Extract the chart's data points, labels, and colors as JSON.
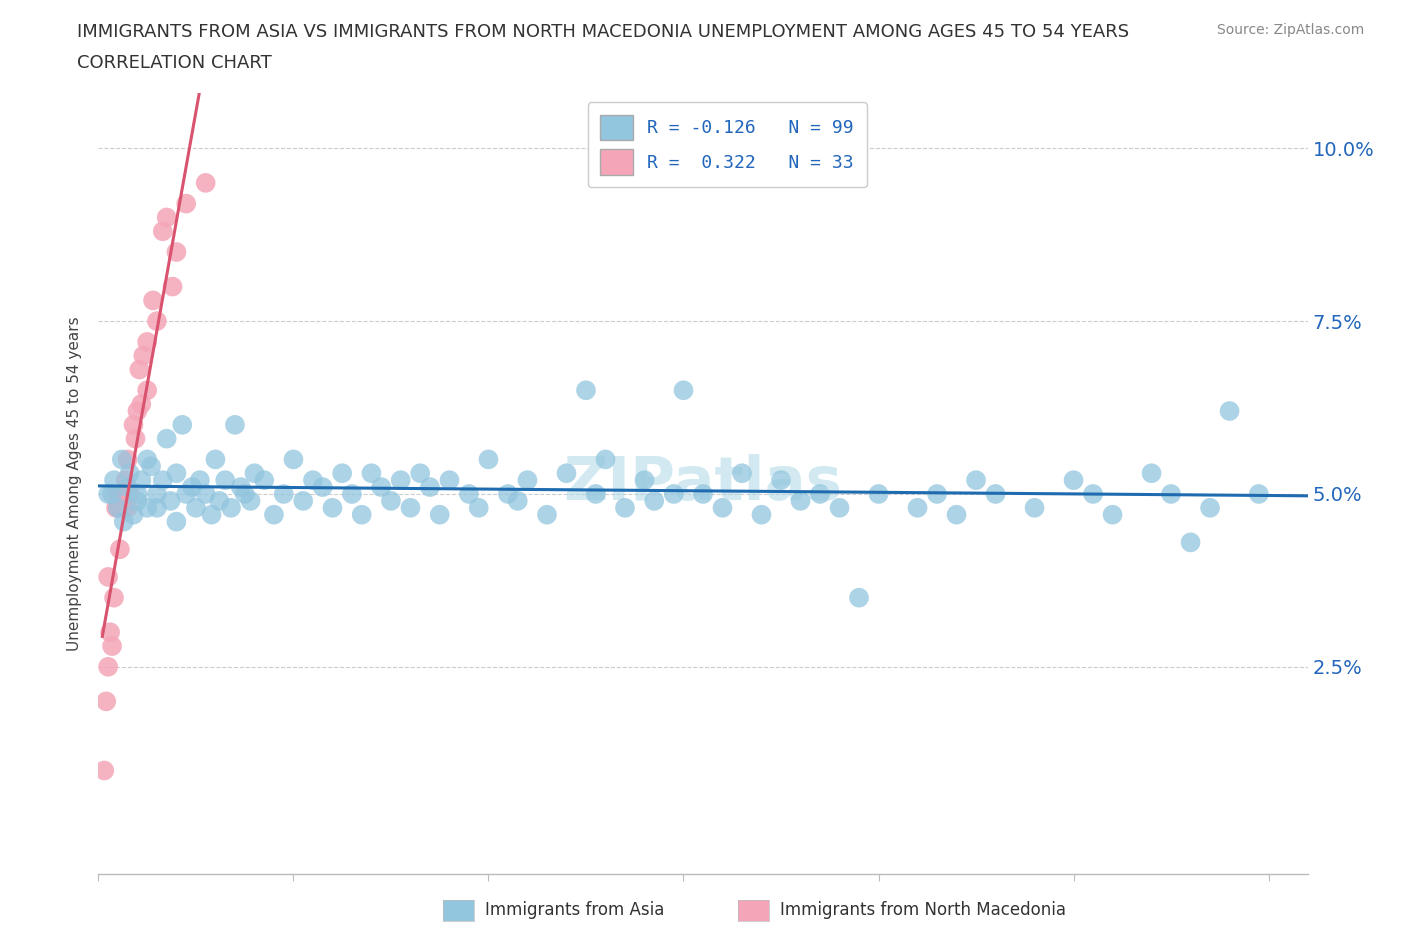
{
  "title_line1": "IMMIGRANTS FROM ASIA VS IMMIGRANTS FROM NORTH MACEDONIA UNEMPLOYMENT AMONG AGES 45 TO 54 YEARS",
  "title_line2": "CORRELATION CHART",
  "source": "Source: ZipAtlas.com",
  "ylabel": "Unemployment Among Ages 45 to 54 years",
  "ytick_vals": [
    0.0,
    0.025,
    0.05,
    0.075,
    0.1
  ],
  "ytick_labels": [
    "",
    "2.5%",
    "5.0%",
    "7.5%",
    "10.0%"
  ],
  "xlim": [
    0.0,
    0.62
  ],
  "ylim": [
    -0.005,
    0.108
  ],
  "watermark": "ZIPatlas",
  "legend_asia": "Immigrants from Asia",
  "legend_macedonia": "Immigrants from North Macedonia",
  "R_asia": -0.126,
  "N_asia": 99,
  "R_mac": 0.322,
  "N_mac": 33,
  "color_asia": "#92c5de",
  "color_mac": "#f4a6b8",
  "color_asia_line": "#1f6bb0",
  "color_mac_line": "#d9536e"
}
